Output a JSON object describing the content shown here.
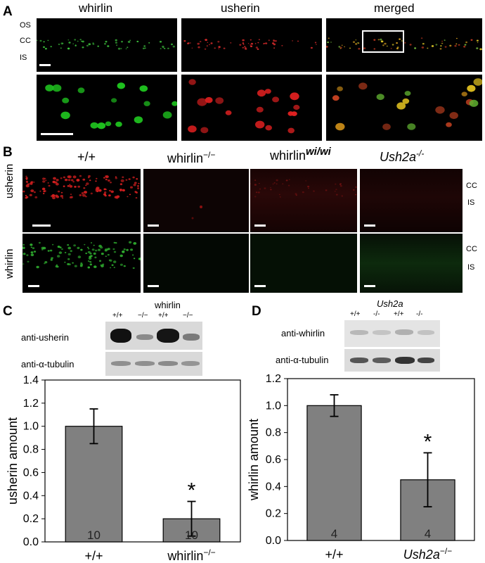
{
  "panels": {
    "A": {
      "letter": "A",
      "col_titles": [
        "whirlin",
        "usherin",
        "merged"
      ],
      "row_labels": [
        "OS",
        "CC",
        "IS"
      ]
    },
    "B": {
      "letter": "B",
      "col_titles": {
        "c1": "+/+",
        "c2_main": "whirlin",
        "c2_sup": "−/−",
        "c3_main": "whirlin",
        "c3_sup": "wi/wi",
        "c4_main": "Ush2a",
        "c4_sup": "-/-"
      },
      "row_titles": [
        "usherin",
        "whirlin"
      ],
      "side_labels": [
        "CC",
        "IS",
        "CC",
        "IS"
      ]
    },
    "C": {
      "letter": "C",
      "blot_header": "whirlin",
      "lane_labels": [
        "+/+",
        "−/−",
        "+/+",
        "−/−"
      ],
      "blot_rows": [
        "anti-usherin",
        "anti-α-tubulin"
      ]
    },
    "D": {
      "letter": "D",
      "blot_header": "Ush2a",
      "lane_labels": [
        "+/+",
        "-/-",
        "+/+",
        "-/-"
      ],
      "blot_rows": [
        "anti-whirlin",
        "anti-α-tubulin"
      ]
    }
  },
  "chart_data": [
    {
      "type": "bar",
      "panel": "C",
      "categories": [
        "+/+",
        "whirlin−/−"
      ],
      "values": [
        1.0,
        0.2
      ],
      "errors": [
        0.15,
        0.15
      ],
      "n_labels": [
        "10",
        "10"
      ],
      "significance": [
        "",
        "*"
      ],
      "ylabel": "usherin amount",
      "ylim": [
        0,
        1.4
      ],
      "yticks": [
        "0.0",
        "0.2",
        "0.4",
        "0.6",
        "0.8",
        "1.0",
        "1.2",
        "1.4"
      ],
      "bar_color": "#808080"
    },
    {
      "type": "bar",
      "panel": "D",
      "categories": [
        "+/+",
        "Ush2a−/−"
      ],
      "values": [
        1.0,
        0.45
      ],
      "errors": [
        0.08,
        0.2
      ],
      "n_labels": [
        "4",
        "4"
      ],
      "significance": [
        "",
        "*"
      ],
      "ylabel": "whirlin amount",
      "ylim": [
        0,
        1.2
      ],
      "yticks": [
        "0.0",
        "0.2",
        "0.4",
        "0.6",
        "0.8",
        "1.0",
        "1.2"
      ],
      "bar_color": "#808080"
    }
  ]
}
